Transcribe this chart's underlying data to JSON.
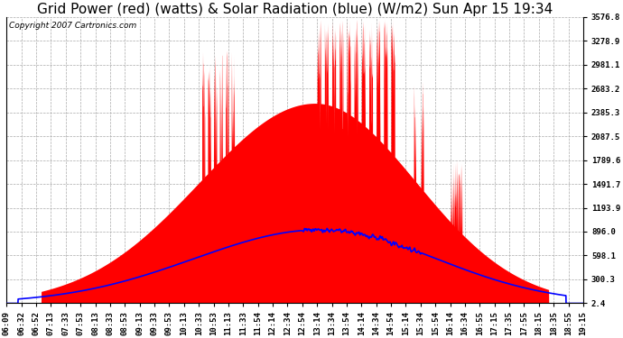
{
  "title": "Grid Power (red) (watts) & Solar Radiation (blue) (W/m2) Sun Apr 15 19:34",
  "copyright": "Copyright 2007 Cartronics.com",
  "yticks": [
    2.4,
    300.3,
    598.1,
    896.0,
    1193.9,
    1491.7,
    1789.6,
    2087.5,
    2385.3,
    2683.2,
    2981.1,
    3278.9,
    3576.8
  ],
  "ymin": 2.4,
  "ymax": 3576.8,
  "xtick_labels": [
    "06:09",
    "06:32",
    "06:52",
    "07:13",
    "07:33",
    "07:53",
    "08:13",
    "08:33",
    "08:53",
    "09:13",
    "09:33",
    "09:53",
    "10:13",
    "10:33",
    "10:53",
    "11:13",
    "11:33",
    "11:54",
    "12:14",
    "12:34",
    "12:54",
    "13:14",
    "13:34",
    "13:54",
    "14:14",
    "14:34",
    "14:54",
    "15:14",
    "15:34",
    "15:54",
    "16:14",
    "16:34",
    "16:55",
    "17:15",
    "17:35",
    "17:55",
    "18:15",
    "18:35",
    "18:55",
    "19:15"
  ],
  "red_color": "#ff0000",
  "blue_color": "#0000ff",
  "bg_color": "#ffffff",
  "grid_color": "#aaaaaa",
  "title_fontsize": 11,
  "copyright_fontsize": 6.5,
  "tick_fontsize": 6.5,
  "n_labels": 40
}
